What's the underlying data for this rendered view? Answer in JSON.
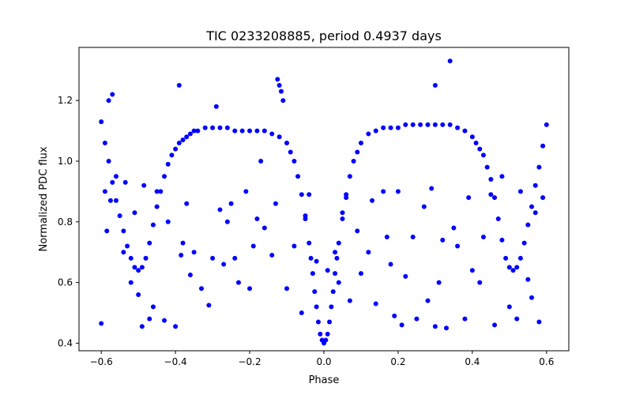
{
  "chart_data": {
    "type": "scatter",
    "title": "TIC 0233208885, period 0.4937 days",
    "xlabel": "Phase",
    "ylabel": "Normalized PDC flux",
    "xlim": [
      -0.66,
      0.66
    ],
    "ylim": [
      0.375,
      1.375
    ],
    "xticks": [
      -0.6,
      -0.4,
      -0.2,
      0.0,
      0.2,
      0.4,
      0.6
    ],
    "xtick_labels": [
      "−0.6",
      "−0.4",
      "−0.2",
      "0.0",
      "0.2",
      "0.4",
      "0.6"
    ],
    "yticks": [
      0.4,
      0.6,
      0.8,
      1.0,
      1.2
    ],
    "ytick_labels": [
      "0.4",
      "0.6",
      "0.8",
      "1.0",
      "1.2"
    ],
    "grid": false,
    "marker_color": "#0000ff",
    "series": [
      {
        "x": [
          -0.6,
          -0.59,
          -0.58,
          -0.57,
          -0.56,
          -0.55,
          -0.54,
          -0.53,
          -0.52,
          -0.51,
          -0.5,
          -0.49,
          -0.48,
          -0.47,
          -0.46,
          -0.45,
          -0.44,
          -0.43,
          -0.42,
          -0.41,
          -0.4,
          -0.39,
          -0.38,
          -0.37,
          -0.36,
          -0.35,
          -0.34,
          -0.32,
          -0.3,
          -0.28,
          -0.26,
          -0.24,
          -0.22,
          -0.2,
          -0.18,
          -0.16,
          -0.14,
          -0.12,
          -0.1,
          -0.09,
          -0.08,
          -0.07,
          -0.06,
          -0.05,
          -0.04,
          -0.035,
          -0.03,
          -0.025,
          -0.02,
          -0.015,
          -0.01,
          -0.005,
          0.0,
          0.005,
          0.01,
          0.015,
          0.02,
          0.025,
          0.03,
          0.035,
          0.04,
          0.05,
          0.06,
          0.07,
          0.08,
          0.09,
          0.1,
          0.12,
          0.14,
          0.16,
          0.18,
          0.2,
          0.22,
          0.24,
          0.26,
          0.28,
          0.3,
          0.32,
          0.34,
          0.36,
          0.38,
          0.4,
          0.41,
          0.42,
          0.43,
          0.44,
          0.45,
          0.46,
          0.47,
          0.48,
          0.49,
          0.5,
          0.51,
          0.52,
          0.53,
          0.54,
          0.55,
          0.56,
          0.57,
          0.58,
          0.59,
          0.6
        ],
        "y": [
          1.13,
          1.06,
          1.0,
          0.93,
          0.87,
          0.82,
          0.77,
          0.72,
          0.68,
          0.65,
          0.64,
          0.65,
          0.68,
          0.73,
          0.79,
          0.85,
          0.9,
          0.95,
          0.99,
          1.02,
          1.04,
          1.06,
          1.07,
          1.08,
          1.09,
          1.1,
          1.1,
          1.11,
          1.11,
          1.11,
          1.11,
          1.1,
          1.1,
          1.1,
          1.1,
          1.1,
          1.09,
          1.08,
          1.06,
          1.03,
          1.0,
          0.95,
          0.89,
          0.81,
          0.73,
          0.68,
          0.63,
          0.57,
          0.52,
          0.47,
          0.43,
          0.41,
          0.4,
          0.41,
          0.43,
          0.47,
          0.52,
          0.57,
          0.63,
          0.68,
          0.73,
          0.81,
          0.89,
          0.95,
          1.0,
          1.03,
          1.06,
          1.09,
          1.1,
          1.11,
          1.11,
          1.11,
          1.12,
          1.12,
          1.12,
          1.12,
          1.12,
          1.12,
          1.12,
          1.11,
          1.1,
          1.08,
          1.06,
          1.04,
          1.02,
          0.98,
          0.94,
          0.88,
          0.81,
          0.74,
          0.68,
          0.65,
          0.64,
          0.65,
          0.68,
          0.73,
          0.79,
          0.85,
          0.92,
          0.98,
          1.05,
          1.12
        ]
      },
      {
        "x": [
          -0.6,
          -0.59,
          -0.585,
          -0.58,
          -0.575,
          -0.57,
          -0.56,
          -0.54,
          -0.535,
          -0.52,
          -0.51,
          -0.5,
          -0.49,
          -0.485,
          -0.47,
          -0.46,
          -0.45,
          -0.43,
          -0.42,
          -0.4,
          -0.39,
          -0.385,
          -0.38,
          -0.37,
          -0.36,
          -0.35,
          -0.33,
          -0.31,
          -0.3,
          -0.29,
          -0.28,
          -0.27,
          -0.26,
          -0.25,
          -0.24,
          -0.23,
          -0.21,
          -0.2,
          -0.19,
          -0.18,
          -0.17,
          -0.16,
          -0.14,
          -0.13,
          -0.125,
          -0.12,
          -0.115,
          -0.11,
          -0.1,
          -0.08,
          -0.06,
          -0.05,
          -0.04,
          -0.02,
          0.01,
          0.03,
          0.04,
          0.05,
          0.06,
          0.07,
          0.09,
          0.1,
          0.12,
          0.13,
          0.14,
          0.16,
          0.17,
          0.18,
          0.19,
          0.2,
          0.21,
          0.22,
          0.24,
          0.25,
          0.27,
          0.28,
          0.29,
          0.3,
          0.3,
          0.31,
          0.32,
          0.33,
          0.34,
          0.35,
          0.36,
          0.38,
          0.39,
          0.4,
          0.42,
          0.43,
          0.45,
          0.46,
          0.48,
          0.5,
          0.52,
          0.53,
          0.55,
          0.56,
          0.57,
          0.58,
          0.59
        ],
        "y": [
          0.465,
          0.9,
          0.77,
          1.2,
          0.87,
          1.22,
          0.95,
          0.7,
          0.93,
          0.6,
          0.83,
          0.56,
          0.455,
          0.92,
          0.48,
          0.52,
          0.9,
          0.475,
          0.8,
          0.455,
          1.25,
          0.69,
          0.73,
          0.86,
          0.625,
          0.7,
          0.58,
          0.525,
          0.68,
          1.18,
          0.84,
          0.66,
          0.8,
          0.86,
          0.68,
          0.6,
          0.9,
          0.58,
          0.72,
          0.81,
          1.0,
          0.78,
          0.69,
          0.86,
          1.27,
          1.25,
          1.23,
          1.2,
          0.58,
          0.72,
          0.5,
          0.82,
          0.89,
          0.67,
          0.64,
          0.7,
          0.6,
          0.83,
          0.88,
          0.54,
          0.77,
          0.63,
          0.7,
          0.87,
          0.53,
          0.9,
          0.75,
          0.66,
          0.49,
          0.9,
          0.46,
          0.62,
          0.75,
          0.48,
          0.85,
          0.54,
          0.91,
          0.455,
          1.25,
          0.6,
          0.74,
          0.45,
          1.33,
          0.78,
          0.72,
          0.48,
          0.88,
          0.64,
          0.6,
          0.75,
          0.89,
          0.46,
          0.95,
          0.52,
          0.48,
          0.9,
          0.61,
          0.55,
          0.83,
          0.47,
          0.88
        ]
      }
    ]
  }
}
